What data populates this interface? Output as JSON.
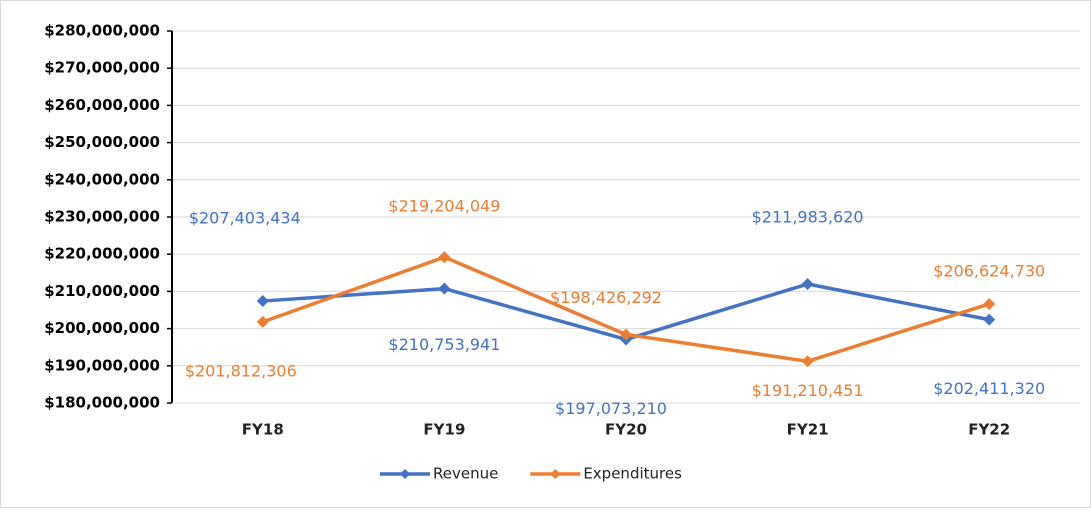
{
  "chart_data": {
    "type": "line",
    "categories": [
      "FY18",
      "FY19",
      "FY20",
      "FY21",
      "FY22"
    ],
    "series": [
      {
        "name": "Revenue",
        "color": "#4472c4",
        "values": [
          207403434,
          210753941,
          197073210,
          211983620,
          202411320
        ],
        "value_labels": [
          "$207,403,434",
          "$210,753,941",
          "$197,073,210",
          "$211,983,620",
          "$202,411,320"
        ]
      },
      {
        "name": "Expenditures",
        "color": "#ed7d31",
        "values": [
          201812306,
          219204049,
          198426292,
          191210451,
          206624730
        ],
        "value_labels": [
          "$201,812,306",
          "$219,204,049",
          "$198,426,292",
          "$191,210,451",
          "$206,624,730"
        ]
      }
    ],
    "ylim": [
      180000000,
      280000000
    ],
    "yticks": [
      {
        "value": 180000000,
        "label": "$180,000,000"
      },
      {
        "value": 190000000,
        "label": "$190,000,000"
      },
      {
        "value": 200000000,
        "label": "$200,000,000"
      },
      {
        "value": 210000000,
        "label": "$210,000,000"
      },
      {
        "value": 220000000,
        "label": "$220,000,000"
      },
      {
        "value": 230000000,
        "label": "$230,000,000"
      },
      {
        "value": 240000000,
        "label": "$240,000,000"
      },
      {
        "value": 250000000,
        "label": "$250,000,000"
      },
      {
        "value": 260000000,
        "label": "$260,000,000"
      },
      {
        "value": 270000000,
        "label": "$270,000,000"
      },
      {
        "value": 280000000,
        "label": "$280,000,000"
      }
    ],
    "grid": true,
    "legend": "bottom"
  }
}
